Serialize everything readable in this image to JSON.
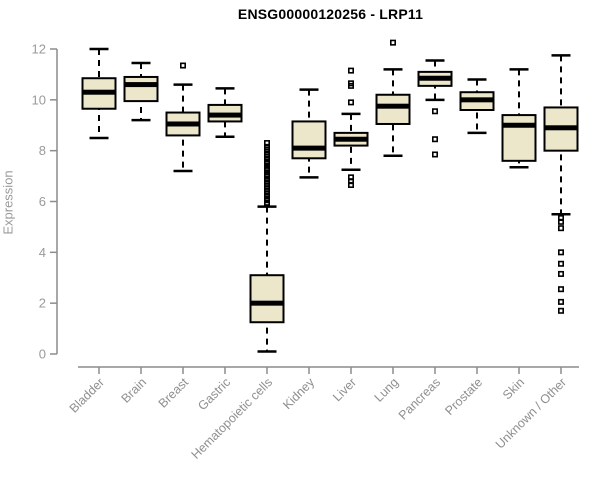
{
  "chart": {
    "title": "ENSG00000120256 - LRP11",
    "ylabel": "Expression"
  },
  "chart_data": {
    "type": "box",
    "title": "ENSG00000120256 - LRP11",
    "xlabel": "",
    "ylabel": "Expression",
    "ylim": [
      0,
      12
    ],
    "yticks": [
      0,
      2,
      4,
      6,
      8,
      10,
      12
    ],
    "grid": false,
    "legend": false,
    "colors": {
      "box_fill": "#ECE7CB",
      "box_stroke": "#000000",
      "median": "#000000",
      "axis": "#8c8c8c",
      "tick_label": "#9a9a9a",
      "title": "#000000"
    },
    "categories": [
      "Bladder",
      "Brain",
      "Breast",
      "Gastric",
      "Hematopoietic cells",
      "Kidney",
      "Liver",
      "Lung",
      "Pancreas",
      "Prostate",
      "Skin",
      "Unknown / Other"
    ],
    "series": [
      {
        "label": "Bladder",
        "whisker_low": 8.5,
        "q1": 9.65,
        "median": 10.3,
        "q3": 10.85,
        "whisker_high": 12.0,
        "outliers": []
      },
      {
        "label": "Brain",
        "whisker_low": 9.2,
        "q1": 9.95,
        "median": 10.6,
        "q3": 10.9,
        "whisker_high": 11.45,
        "outliers": []
      },
      {
        "label": "Breast",
        "whisker_low": 7.2,
        "q1": 8.6,
        "median": 9.05,
        "q3": 9.5,
        "whisker_high": 10.6,
        "outliers": [
          11.35
        ]
      },
      {
        "label": "Gastric",
        "whisker_low": 8.55,
        "q1": 9.15,
        "median": 9.4,
        "q3": 9.8,
        "whisker_high": 10.45,
        "outliers": []
      },
      {
        "label": "Hematopoietic cells",
        "whisker_low": 0.1,
        "q1": 1.25,
        "median": 2.0,
        "q3": 3.1,
        "whisker_high": 5.8,
        "outliers": [
          8.3,
          8.15,
          8.05,
          7.95,
          7.85,
          7.75,
          7.65,
          7.55,
          7.5,
          7.4,
          7.3,
          7.25,
          7.15,
          7.05,
          7.0,
          6.9,
          6.8,
          6.7,
          6.6,
          6.5,
          6.4,
          6.3,
          6.2,
          6.1,
          6.05,
          5.95,
          5.9
        ]
      },
      {
        "label": "Kidney",
        "whisker_low": 6.95,
        "q1": 7.7,
        "median": 8.1,
        "q3": 9.15,
        "whisker_high": 10.4,
        "outliers": []
      },
      {
        "label": "Liver",
        "whisker_low": 7.25,
        "q1": 8.2,
        "median": 8.45,
        "q3": 8.7,
        "whisker_high": 9.45,
        "outliers": [
          11.15,
          10.65,
          10.55,
          9.9,
          6.95,
          6.8,
          6.65
        ]
      },
      {
        "label": "Lung",
        "whisker_low": 7.8,
        "q1": 9.05,
        "median": 9.75,
        "q3": 10.2,
        "whisker_high": 11.2,
        "outliers": [
          12.25
        ]
      },
      {
        "label": "Pancreas",
        "whisker_low": 10.0,
        "q1": 10.55,
        "median": 10.85,
        "q3": 11.1,
        "whisker_high": 11.55,
        "outliers": [
          9.55,
          8.45,
          7.85
        ]
      },
      {
        "label": "Prostate",
        "whisker_low": 8.7,
        "q1": 9.6,
        "median": 10.0,
        "q3": 10.3,
        "whisker_high": 10.8,
        "outliers": []
      },
      {
        "label": "Skin",
        "whisker_low": 7.35,
        "q1": 7.6,
        "median": 9.0,
        "q3": 9.4,
        "whisker_high": 11.2,
        "outliers": []
      },
      {
        "label": "Unknown / Other",
        "whisker_low": 5.5,
        "q1": 8.0,
        "median": 8.9,
        "q3": 9.7,
        "whisker_high": 11.75,
        "outliers": [
          5.35,
          5.2,
          4.95,
          4.0,
          3.55,
          3.15,
          2.55,
          2.05,
          1.7
        ]
      }
    ]
  }
}
